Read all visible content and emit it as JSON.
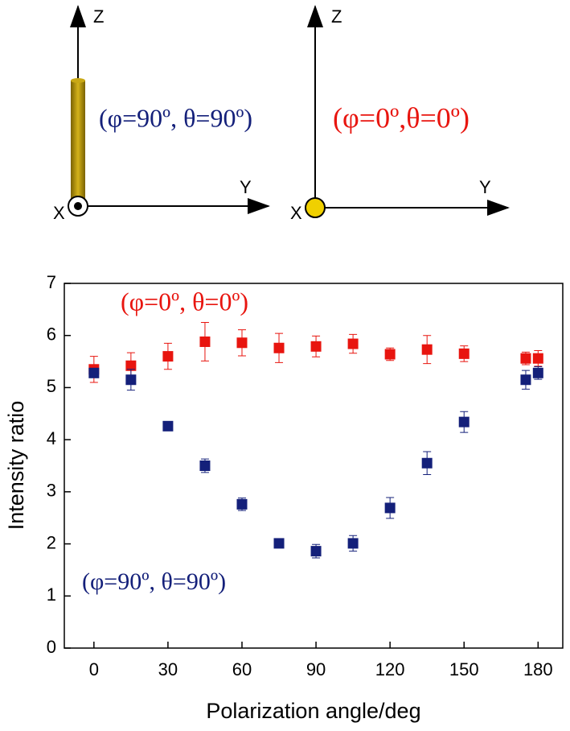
{
  "diagram": {
    "left": {
      "z": "Z",
      "y": "Y",
      "x": "X",
      "label": "(φ=90º, θ=90º)"
    },
    "right": {
      "z": "Z",
      "y": "Y",
      "x": "X",
      "label": "(φ=0º,θ=0º)"
    }
  },
  "chart_data": {
    "type": "scatter",
    "x_label": "Polarization angle/deg",
    "y_label": "Intensity ratio",
    "annotations": [
      "(φ=0º, θ=0º)",
      "(φ=90º, θ=90º)"
    ],
    "x": [
      0,
      15,
      30,
      45,
      60,
      75,
      90,
      105,
      120,
      135,
      150,
      175,
      180
    ],
    "series": [
      {
        "color": "#e8150f",
        "values": [
          5.35,
          5.42,
          5.6,
          5.88,
          5.86,
          5.76,
          5.79,
          5.84,
          5.64,
          5.73,
          5.65,
          5.56,
          5.56
        ],
        "errors": [
          0.25,
          0.25,
          0.25,
          0.37,
          0.25,
          0.28,
          0.2,
          0.18,
          0.12,
          0.27,
          0.15,
          0.12,
          0.15
        ]
      },
      {
        "color": "#14207a",
        "values": [
          5.28,
          5.15,
          4.26,
          3.5,
          2.76,
          2.01,
          1.86,
          2.01,
          2.69,
          3.55,
          4.34,
          5.15,
          5.28
        ],
        "errors": [
          0.05,
          0.2,
          0.05,
          0.13,
          0.12,
          0.05,
          0.13,
          0.15,
          0.2,
          0.22,
          0.2,
          0.18,
          0.12
        ]
      }
    ],
    "xlim": [
      -12,
      190
    ],
    "ylim": [
      0,
      7
    ],
    "xticks": [
      0,
      30,
      60,
      90,
      120,
      150,
      180
    ],
    "yticks": [
      0,
      1,
      2,
      3,
      4,
      5,
      6,
      7
    ]
  }
}
